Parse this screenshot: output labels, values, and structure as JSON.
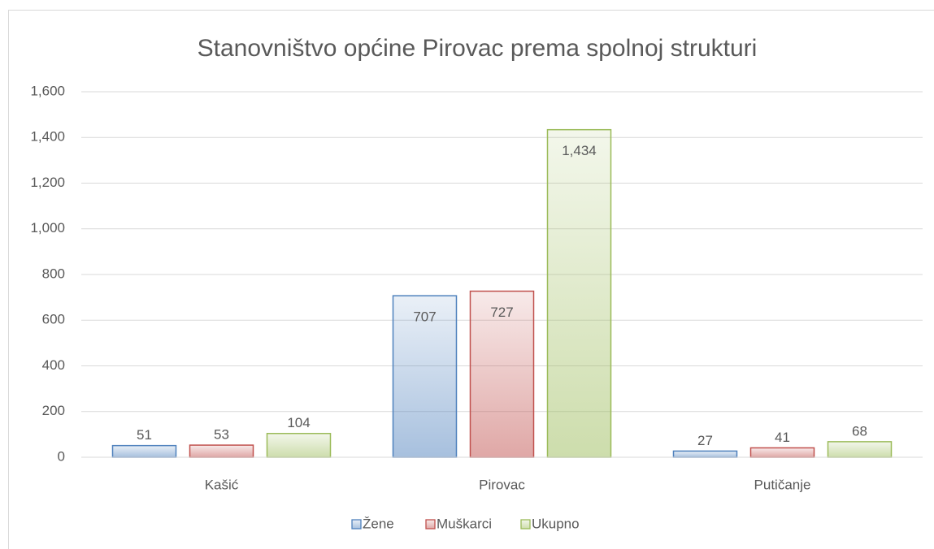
{
  "chart_data": {
    "type": "bar",
    "title": "Stanovništvo općine Pirovac prema spolnoj strukturi",
    "categories": [
      "Kašić",
      "Pirovac",
      "Putičanje"
    ],
    "series": [
      {
        "name": "Žene",
        "color": "#4f81bd",
        "values": [
          51,
          707,
          27
        ]
      },
      {
        "name": "Muškarci",
        "color": "#c0504d",
        "values": [
          53,
          727,
          41
        ]
      },
      {
        "name": "Ukupno",
        "color": "#9bbb59",
        "values": [
          104,
          1434,
          68
        ],
        "value_labels": [
          "104",
          "1,434",
          "68"
        ]
      }
    ],
    "ylim": [
      0,
      1600
    ],
    "yticks": [
      0,
      200,
      400,
      600,
      800,
      {
        "value": 1000,
        "label": "1,000"
      },
      {
        "value": 1200,
        "label": "1,200"
      },
      {
        "value": 1400,
        "label": "1,400"
      },
      {
        "value": 1600,
        "label": "1,600"
      }
    ],
    "grid": true,
    "legend": "bottom"
  }
}
